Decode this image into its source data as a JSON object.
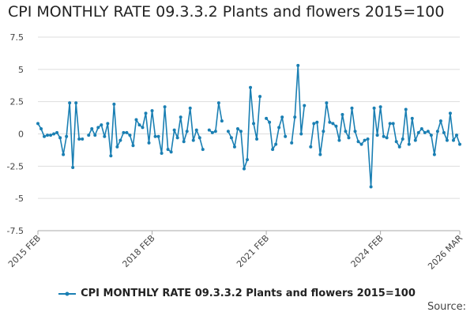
{
  "chart_data": {
    "type": "line",
    "title": "CPI MONTHLY RATE 09.3.3.2 Plants and flowers 2015=100",
    "xlabel": "",
    "ylabel": "",
    "ylim": [
      -7.5,
      7.5
    ],
    "yticks": [
      "7.5",
      "5",
      "2.5",
      "0",
      "-2.5",
      "-5",
      "-7.5"
    ],
    "xticks": [
      "2015 FEB",
      "2018 FEB",
      "2021 FEB",
      "2024 FEB",
      "2026 MAR"
    ],
    "grid": "horizontal",
    "legend_position": "bottom",
    "series": [
      {
        "name": "CPI MONTHLY RATE 09.3.3.2 Plants and flowers 2015=100",
        "color": "#1a7fb3",
        "values": [
          0.8,
          0.4,
          -0.2,
          -0.1,
          -0.1,
          0.0,
          0.1,
          -0.3,
          -1.6,
          -0.2,
          2.4,
          -2.6,
          2.4,
          -0.4,
          -0.4,
          null,
          -0.1,
          0.4,
          -0.1,
          0.5,
          0.7,
          -0.2,
          0.8,
          -1.7,
          2.3,
          -1.0,
          -0.5,
          0.1,
          0.1,
          -0.1,
          -0.9,
          1.1,
          0.7,
          0.5,
          1.6,
          -0.7,
          1.8,
          -0.2,
          -0.2,
          -1.5,
          2.1,
          -1.2,
          -1.4,
          0.3,
          -0.3,
          1.3,
          -0.6,
          0.2,
          2.0,
          -0.5,
          0.3,
          -0.3,
          -1.2,
          null,
          0.3,
          0.1,
          0.2,
          2.4,
          1.0,
          null,
          0.2,
          -0.3,
          -1.0,
          0.4,
          0.2,
          -2.7,
          -2.0,
          3.6,
          0.8,
          -0.4,
          2.9,
          null,
          1.2,
          0.9,
          -1.2,
          -0.8,
          0.5,
          1.3,
          -0.2,
          null,
          -0.7,
          1.3,
          5.3,
          0.0,
          2.2,
          null,
          -1.0,
          0.8,
          0.9,
          -1.6,
          0.2,
          2.4,
          0.9,
          0.8,
          0.6,
          -0.5,
          1.5,
          0.2,
          -0.3,
          2.0,
          0.2,
          -0.6,
          -0.8,
          -0.5,
          -0.4,
          -4.1,
          2.0,
          -0.1,
          2.1,
          -0.2,
          -0.3,
          0.8,
          0.8,
          -0.6,
          -1.0,
          -0.4,
          1.9,
          -0.8,
          1.2,
          -0.5,
          0.1,
          0.4,
          0.1,
          0.2,
          -0.1,
          -1.6,
          0.2,
          1.0,
          0.1,
          -0.5,
          1.6,
          -0.5,
          -0.1,
          -0.8
        ]
      }
    ]
  },
  "page": {
    "title": "CPI MONTHLY RATE 09.3.3.2 Plants and flowers 2015=100",
    "legend_label": "CPI MONTHLY RATE 09.3.3.2 Plants and flowers 2015=100",
    "source_label": "Source:"
  }
}
